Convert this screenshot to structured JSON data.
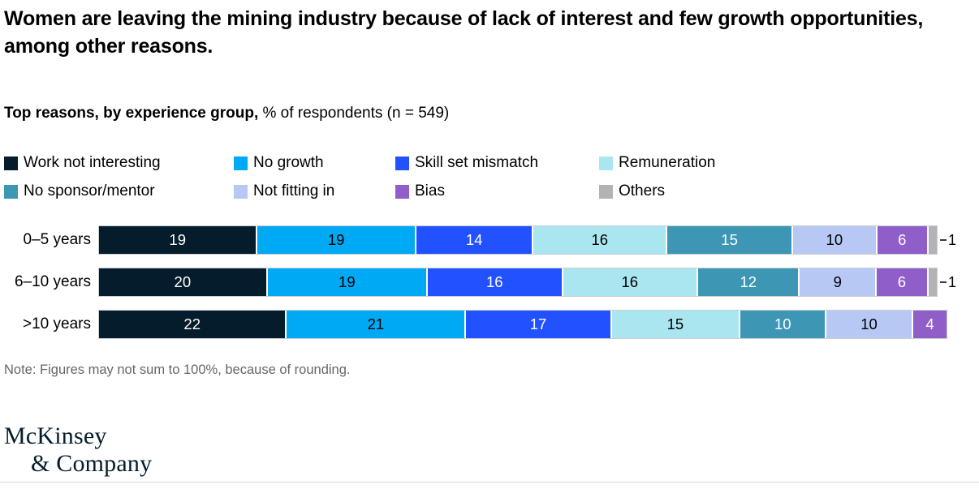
{
  "title": "Women are leaving the mining industry because of lack of interest and few growth opportunities, among other reasons.",
  "subtitle": {
    "bold": "Top reasons, by experience group,",
    "regular": " % of respondents (n = 549)"
  },
  "note": "Note: Figures may not sum to 100%, because of rounding.",
  "logo": {
    "line1": "McKinsey",
    "line2": "& Company"
  },
  "chart_data": {
    "type": "bar",
    "variant": "horizontal-stacked",
    "title": "Top reasons, by experience group, % of respondents (n = 549)",
    "categories": [
      "0–5 years",
      "6–10 years",
      ">10 years"
    ],
    "series": [
      {
        "name": "Work not interesting",
        "color": "#051c2c",
        "text_color": "#ffffff",
        "values": [
          19,
          20,
          22
        ]
      },
      {
        "name": "No growth",
        "color": "#00a9f4",
        "text_color": "#000000",
        "values": [
          19,
          19,
          21
        ]
      },
      {
        "name": "Skill set mismatch",
        "color": "#2251ff",
        "text_color": "#ffffff",
        "values": [
          14,
          16,
          17
        ]
      },
      {
        "name": "Remuneration",
        "color": "#aae6f0",
        "text_color": "#000000",
        "values": [
          16,
          16,
          15
        ]
      },
      {
        "name": "No sponsor/mentor",
        "color": "#3c96b4",
        "text_color": "#ffffff",
        "values": [
          15,
          12,
          10
        ]
      },
      {
        "name": "Not fitting in",
        "color": "#b7c8f5",
        "text_color": "#000000",
        "values": [
          10,
          9,
          10
        ]
      },
      {
        "name": "Bias",
        "color": "#8f5ec9",
        "text_color": "#ffffff",
        "values": [
          6,
          6,
          4
        ]
      },
      {
        "name": "Others",
        "color": "#b3b3b3",
        "text_color": "#000000",
        "values": [
          1,
          1,
          0
        ],
        "label_outside": true
      }
    ],
    "xlim": [
      0,
      100
    ],
    "legend_position": "top",
    "grid": false
  }
}
